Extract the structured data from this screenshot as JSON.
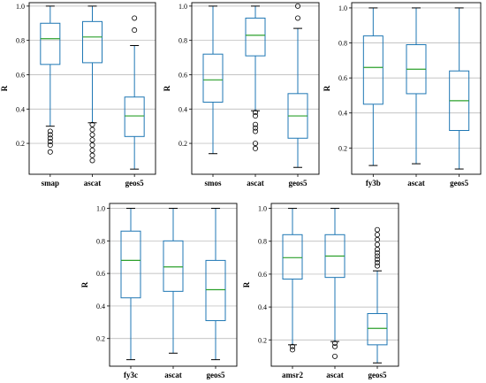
{
  "colors": {
    "box": "#1f77b4",
    "median": "#2ca02c",
    "grid": "#b0b0b0",
    "axes": "#000000"
  },
  "chart_data": [
    {
      "type": "box",
      "ylabel": "R",
      "ylim": [
        0.02,
        1.02
      ],
      "yticks": [
        0.2,
        0.4,
        0.6,
        0.8,
        1.0
      ],
      "tick_labels": [
        "0.2",
        "0.4",
        "0.6",
        "0.8",
        "1.0"
      ],
      "grid": "horizontal",
      "categories": [
        "smap",
        "ascat",
        "geos5"
      ],
      "boxes": [
        {
          "whislo": 0.3,
          "q1": 0.66,
          "med": 0.81,
          "q3": 0.9,
          "whishi": 1.0,
          "fliers": [
            0.15,
            0.19,
            0.21,
            0.23,
            0.25,
            0.27
          ]
        },
        {
          "whislo": 0.32,
          "q1": 0.67,
          "med": 0.82,
          "q3": 0.91,
          "whishi": 1.0,
          "fliers": [
            0.1,
            0.13,
            0.16,
            0.19,
            0.22,
            0.25,
            0.28,
            0.31
          ]
        },
        {
          "whislo": 0.05,
          "q1": 0.24,
          "med": 0.36,
          "q3": 0.47,
          "whishi": 0.77,
          "fliers": [
            0.86,
            0.93
          ]
        }
      ]
    },
    {
      "type": "box",
      "ylabel": "R",
      "ylim": [
        0.02,
        1.02
      ],
      "yticks": [
        0.2,
        0.4,
        0.6,
        0.8,
        1.0
      ],
      "tick_labels": [
        "0.2",
        "0.4",
        "0.6",
        "0.8",
        "1.0"
      ],
      "grid": "horizontal",
      "categories": [
        "smos",
        "ascat",
        "geos5"
      ],
      "boxes": [
        {
          "whislo": 0.14,
          "q1": 0.44,
          "med": 0.57,
          "q3": 0.72,
          "whishi": 1.0,
          "fliers": []
        },
        {
          "whislo": 0.39,
          "q1": 0.71,
          "med": 0.83,
          "q3": 0.93,
          "whishi": 1.0,
          "fliers": [
            0.17,
            0.2,
            0.27,
            0.29,
            0.31,
            0.36,
            0.38
          ]
        },
        {
          "whislo": 0.06,
          "q1": 0.23,
          "med": 0.36,
          "q3": 0.49,
          "whishi": 0.87,
          "fliers": [
            0.93,
            1.0
          ]
        }
      ]
    },
    {
      "type": "box",
      "ylabel": "R",
      "ylim": [
        0.05,
        1.03
      ],
      "yticks": [
        0.2,
        0.4,
        0.6,
        0.8,
        1.0
      ],
      "tick_labels": [
        "0.2",
        "0.4",
        "0.6",
        "0.8",
        "1.0"
      ],
      "grid": "horizontal",
      "categories": [
        "fy3b",
        "ascat",
        "geos5"
      ],
      "boxes": [
        {
          "whislo": 0.1,
          "q1": 0.45,
          "med": 0.66,
          "q3": 0.84,
          "whishi": 1.0,
          "fliers": []
        },
        {
          "whislo": 0.11,
          "q1": 0.51,
          "med": 0.65,
          "q3": 0.79,
          "whishi": 1.0,
          "fliers": []
        },
        {
          "whislo": 0.08,
          "q1": 0.3,
          "med": 0.47,
          "q3": 0.64,
          "whishi": 1.0,
          "fliers": []
        }
      ]
    },
    {
      "type": "box",
      "ylabel": "R",
      "ylim": [
        0.03,
        1.03
      ],
      "yticks": [
        0.2,
        0.4,
        0.6,
        0.8,
        1.0
      ],
      "tick_labels": [
        "0.2",
        "0.4",
        "0.6",
        "0.8",
        "1.0"
      ],
      "grid": "horizontal",
      "categories": [
        "fy3c",
        "ascat",
        "geos5"
      ],
      "boxes": [
        {
          "whislo": 0.07,
          "q1": 0.45,
          "med": 0.68,
          "q3": 0.86,
          "whishi": 1.0,
          "fliers": []
        },
        {
          "whislo": 0.11,
          "q1": 0.49,
          "med": 0.64,
          "q3": 0.8,
          "whishi": 1.0,
          "fliers": []
        },
        {
          "whislo": 0.07,
          "q1": 0.31,
          "med": 0.5,
          "q3": 0.68,
          "whishi": 1.0,
          "fliers": []
        }
      ]
    },
    {
      "type": "box",
      "ylabel": "R",
      "ylim": [
        0.04,
        1.03
      ],
      "yticks": [
        0.2,
        0.4,
        0.6,
        0.8,
        1.0
      ],
      "tick_labels": [
        "0.2",
        "0.4",
        "0.6",
        "0.8",
        "1.0"
      ],
      "grid": "horizontal",
      "categories": [
        "amsr2",
        "ascat",
        "geos5"
      ],
      "boxes": [
        {
          "whislo": 0.17,
          "q1": 0.57,
          "med": 0.7,
          "q3": 0.84,
          "whishi": 1.0,
          "fliers": [
            0.14,
            0.16
          ]
        },
        {
          "whislo": 0.19,
          "q1": 0.58,
          "med": 0.71,
          "q3": 0.84,
          "whishi": 1.0,
          "fliers": [
            0.1,
            0.16,
            0.18
          ]
        },
        {
          "whislo": 0.06,
          "q1": 0.17,
          "med": 0.27,
          "q3": 0.36,
          "whishi": 0.62,
          "fliers": [
            0.65,
            0.67,
            0.69,
            0.71,
            0.73,
            0.75,
            0.78,
            0.81,
            0.84,
            0.87
          ]
        }
      ]
    }
  ]
}
